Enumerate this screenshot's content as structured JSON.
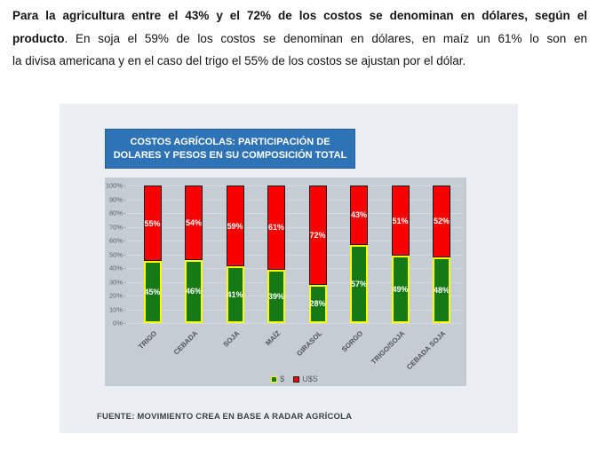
{
  "paragraph": {
    "line1_bold": "Para la agricultura entre el 43% y el 72% de los costos se denominan en dólares, según el",
    "line2_bold": "producto",
    "line2_rest": ". En soja el 59% de los costos se denominan en dólares, en maíz un 61% lo son en",
    "line3": "la divisa americana y en el caso del trigo el 55% de los costos se ajustan por el dólar."
  },
  "figure": {
    "source_note": "FUENTE: MOVIMIENTO CREA EN BASE A RADAR AGRÍCOLA"
  },
  "chart_data": {
    "type": "bar",
    "stacked": true,
    "title": "COSTOS AGRÍCOLAS: PARTICIPACIÓN DE DOLARES Y PESOS EN SU COMPOSICIÓN TOTAL",
    "title_lines": [
      "COSTOS AGRÍCOLAS: PARTICIPACIÓN DE",
      "DOLARES Y PESOS EN SU COMPOSICIÓN TOTAL"
    ],
    "categories": [
      "TRIGO",
      "CEBADA",
      "SOJA",
      "MAÍZ",
      "GIRASOL",
      "SORGO",
      "TRIGO/SOJA",
      "CEBADA SOJA"
    ],
    "series": [
      {
        "name": "$",
        "color": "#157a15",
        "border_color": "#ffff00",
        "values": [
          45,
          46,
          41,
          39,
          28,
          57,
          49,
          48
        ]
      },
      {
        "name": "U$S",
        "color": "#fb0000",
        "border_color": "#1c1c1c",
        "values": [
          55,
          54,
          59,
          61,
          72,
          43,
          51,
          52
        ]
      }
    ],
    "value_suffix": "%",
    "y_ticks": [
      "0%",
      "10%",
      "20%",
      "30%",
      "40%",
      "50%",
      "60%",
      "70%",
      "80%",
      "90%",
      "100%"
    ],
    "ylim": [
      0,
      100
    ],
    "grid": true,
    "legend_position": "bottom",
    "colors": {
      "title_box_bg": "#2e73b5",
      "plot_bg": "#c6ccd3",
      "panel_bg": "#ebeff3"
    }
  }
}
